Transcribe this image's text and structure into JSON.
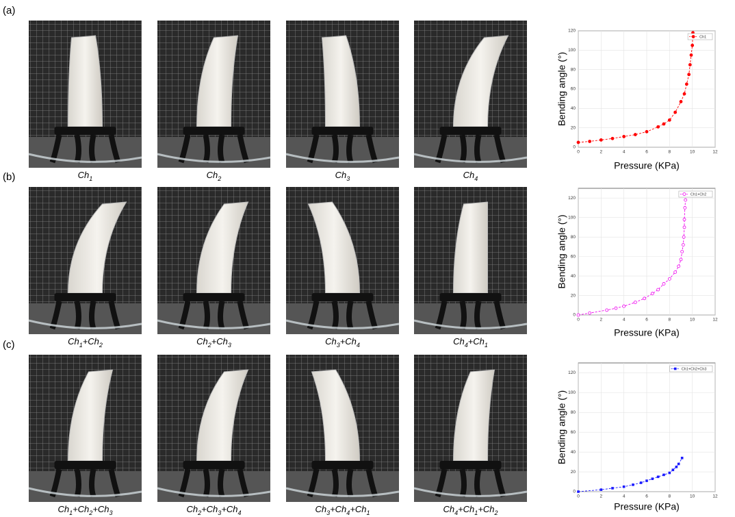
{
  "panels": [
    {
      "label": "(a)",
      "captions": [
        "Ch1",
        "Ch2",
        "Ch3",
        "Ch4"
      ]
    },
    {
      "label": "(b)",
      "captions": [
        "Ch1+Ch2",
        "Ch2+Ch3",
        "Ch3+Ch4",
        "Ch4+Ch1"
      ]
    },
    {
      "label": "(c)",
      "captions": [
        "Ch1+Ch2+Ch3",
        "Ch2+Ch3+Ch4",
        "Ch3+Ch4+Ch1",
        "Ch4+Ch1+Ch2"
      ]
    }
  ],
  "chart_data": [
    {
      "type": "line",
      "xlabel": "Pressure (KPa)",
      "ylabel": "Bending angle (°)",
      "xlim": [
        0,
        12
      ],
      "ylim": [
        0,
        120
      ],
      "xticks": [
        0,
        2,
        4,
        6,
        8,
        10,
        12
      ],
      "yticks": [
        0,
        20,
        40,
        60,
        80,
        100,
        120
      ],
      "grid": true,
      "legend": "upper right",
      "x": [
        0,
        1,
        2,
        3,
        4,
        5,
        6,
        7,
        7.5,
        8,
        8.5,
        9,
        9.3,
        9.5,
        9.7,
        9.8,
        9.9,
        10,
        10.05
      ],
      "series": [
        {
          "name": "Ch1",
          "color": "#ff0000",
          "marker": "filled-circle",
          "values": [
            5,
            6,
            7.5,
            9,
            11,
            13,
            16,
            21,
            24,
            28,
            36,
            47,
            55,
            65,
            75,
            85,
            95,
            105,
            118
          ]
        }
      ]
    },
    {
      "type": "line",
      "xlabel": "Pressure (KPa)",
      "ylabel": "Bending angle (°)",
      "xlim": [
        0,
        12
      ],
      "ylim": [
        0,
        130
      ],
      "xticks": [
        0,
        2,
        4,
        6,
        8,
        10,
        12
      ],
      "yticks": [
        0,
        20,
        40,
        60,
        80,
        100,
        120
      ],
      "grid": true,
      "legend": "upper right",
      "x": [
        0,
        1,
        2.5,
        3.3,
        4,
        5,
        5.8,
        6.5,
        7,
        7.5,
        8,
        8.5,
        8.8,
        9,
        9.1,
        9.2,
        9.25,
        9.3,
        9.3,
        9.35,
        9.4
      ],
      "series": [
        {
          "name": "Ch1+Ch2",
          "color": "#ee00ee",
          "marker": "open-circle",
          "values": [
            0,
            2,
            5,
            7,
            9,
            13,
            17,
            22,
            26,
            32,
            37,
            44,
            50,
            57,
            65,
            72,
            80,
            90,
            98,
            110,
            118
          ]
        }
      ]
    },
    {
      "type": "line",
      "xlabel": "Pressure (KPa)",
      "ylabel": "Bending angle (°)",
      "xlim": [
        0,
        12
      ],
      "ylim": [
        0,
        130
      ],
      "xticks": [
        0,
        2,
        4,
        6,
        8,
        10,
        12
      ],
      "yticks": [
        0,
        20,
        40,
        60,
        80,
        100,
        120
      ],
      "grid": true,
      "legend": "upper right",
      "x": [
        0,
        2,
        3,
        4,
        4.8,
        5.5,
        6,
        6.5,
        7,
        7.5,
        8,
        8.3,
        8.6,
        8.8,
        9.1
      ],
      "series": [
        {
          "name": "Ch1+Ch2+Ch3",
          "color": "#1a1aff",
          "marker": "filled-square",
          "values": [
            0,
            2,
            3.5,
            5,
            7,
            9,
            11,
            13,
            15,
            17,
            19,
            22,
            25,
            28,
            34
          ]
        }
      ]
    }
  ]
}
